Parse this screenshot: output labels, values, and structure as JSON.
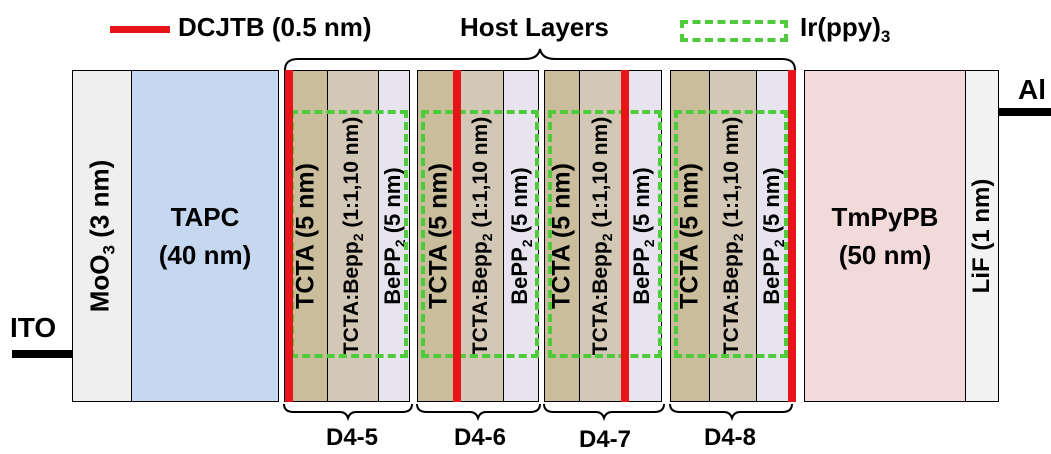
{
  "legend": {
    "dcjtb_label": "DCJTB (0.5 nm)",
    "host_label": "Host Layers",
    "ir_label_main": "Ir(ppy)",
    "ir_label_sub": "3"
  },
  "electrodes": {
    "anode": "ITO",
    "cathode": "Al"
  },
  "layers": {
    "moo3": {
      "name": "MoO",
      "sub": "3",
      "thickness": "(3 nm)"
    },
    "tapc": {
      "name": "TAPC",
      "thickness": "(40 nm)"
    },
    "tcta": "TCTA (5 nm)",
    "mix": {
      "pre": "TCTA:Bepp",
      "sub": "2",
      "post": " (1:1,10 nm)"
    },
    "bepp": {
      "pre": "BePP",
      "sub": "2",
      "post": " (5 nm)"
    },
    "tmpypb": {
      "name": "TmPyPB",
      "thickness": "(50 nm)"
    },
    "lif": "LiF (1 nm)"
  },
  "devices": [
    {
      "label": "D4-5"
    },
    {
      "label": "D4-6"
    },
    {
      "label": "D4-7"
    },
    {
      "label": "D4-8"
    }
  ],
  "colors": {
    "dcjtb": "#e8141a",
    "ir": "#4ecb3a",
    "moo3": "#efefef",
    "tapc": "#c5d8ef",
    "tcta": "#c9bd9b",
    "mix": "#d2c8b5",
    "bepp": "#e8e4ef",
    "tmpypb": "#f2dada",
    "lif": "#f2f2f2"
  }
}
